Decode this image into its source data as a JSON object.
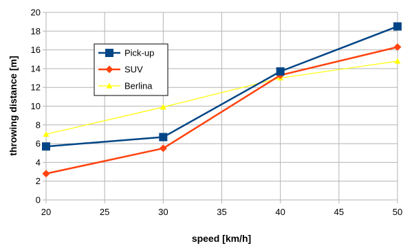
{
  "chart_data": {
    "type": "line",
    "title": "",
    "xlabel": "speed [km/h]",
    "ylabel": "throwing distance [m]",
    "xlim": [
      20,
      50
    ],
    "ylim": [
      0,
      20
    ],
    "x_ticks": [
      20,
      25,
      30,
      35,
      40,
      45,
      50
    ],
    "y_ticks": [
      0,
      2,
      4,
      6,
      8,
      10,
      12,
      14,
      16,
      18,
      20
    ],
    "grid": true,
    "legend_position": "upper-left",
    "series": [
      {
        "name": "Pick-up",
        "color": "#004586",
        "marker": "square",
        "x": [
          20,
          30,
          40,
          50
        ],
        "values": [
          5.7,
          6.7,
          13.7,
          18.5
        ]
      },
      {
        "name": "SUV",
        "color": "#ff420e",
        "marker": "diamond",
        "x": [
          20,
          30,
          40,
          50
        ],
        "values": [
          2.8,
          5.5,
          13.3,
          16.3
        ]
      },
      {
        "name": "Berlina",
        "color": "#ffff00",
        "marker": "triangle",
        "x": [
          20,
          30,
          40,
          50
        ],
        "values": [
          7.0,
          9.9,
          13.0,
          14.8
        ]
      }
    ]
  }
}
